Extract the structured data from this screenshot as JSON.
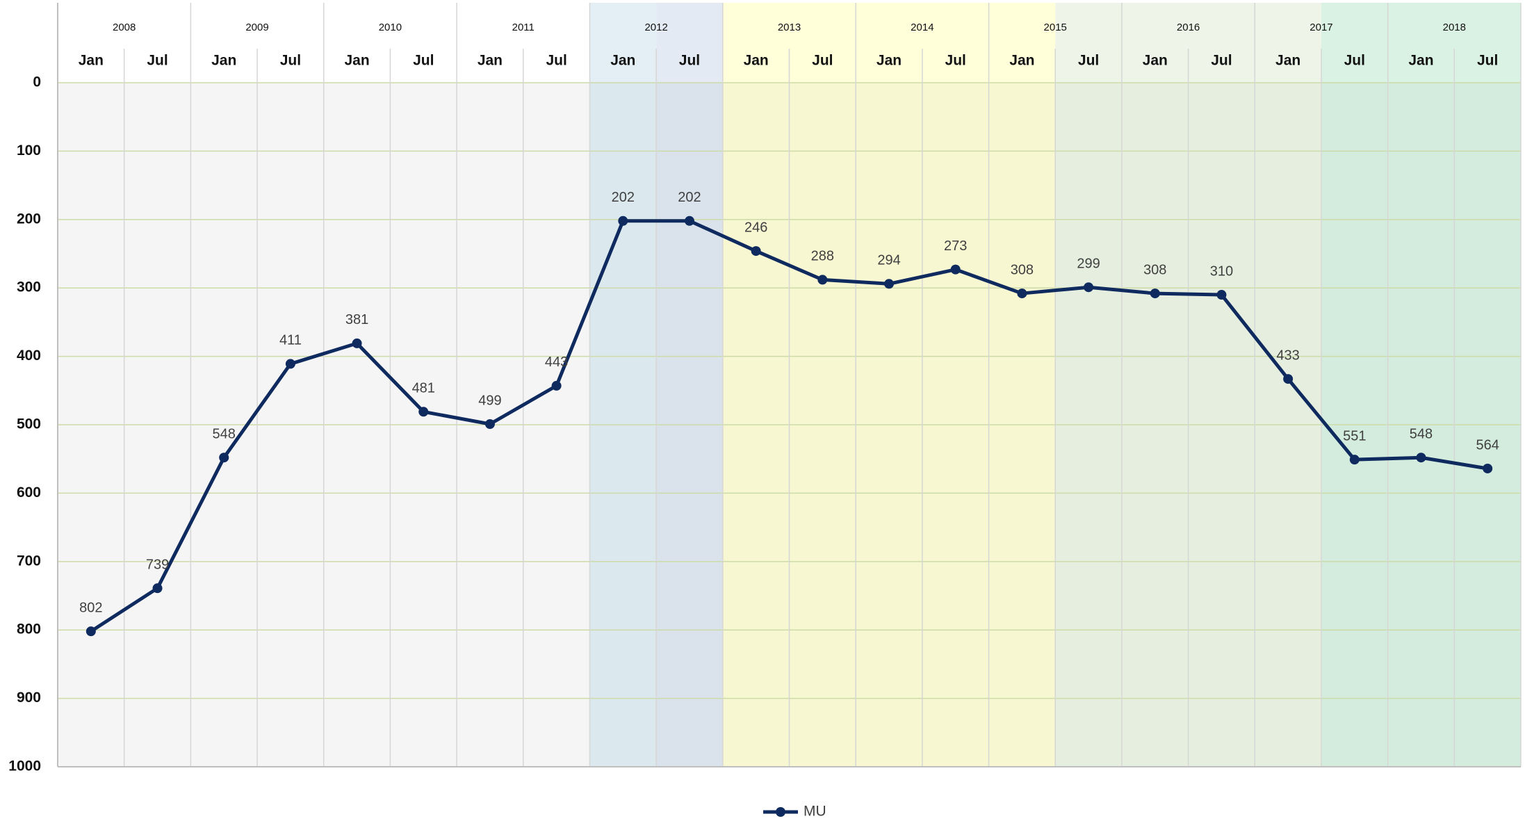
{
  "chart_data": {
    "type": "line",
    "years": [
      "2008",
      "2009",
      "2010",
      "2011",
      "2012",
      "2013",
      "2014",
      "2015",
      "2016",
      "2017",
      "2018"
    ],
    "categories": [
      "Jan",
      "Jul",
      "Jan",
      "Jul",
      "Jan",
      "Jul",
      "Jan",
      "Jul",
      "Jan",
      "Jul",
      "Jan",
      "Jul",
      "Jan",
      "Jul",
      "Jan",
      "Jul",
      "Jan",
      "Jul",
      "Jan",
      "Jul",
      "Jan",
      "Jul"
    ],
    "series": [
      {
        "name": "MU",
        "color": "#0f2a5e",
        "values": [
          802,
          739,
          548,
          411,
          381,
          481,
          499,
          443,
          202,
          202,
          246,
          288,
          294,
          273,
          308,
          299,
          308,
          310,
          433,
          551,
          548,
          564
        ]
      }
    ],
    "ylim": [
      0,
      1000
    ],
    "yticks": [
      0,
      100,
      200,
      300,
      400,
      500,
      600,
      700,
      800,
      900,
      1000
    ],
    "y_reversed": true,
    "grid": true,
    "legend": "bottom"
  }
}
